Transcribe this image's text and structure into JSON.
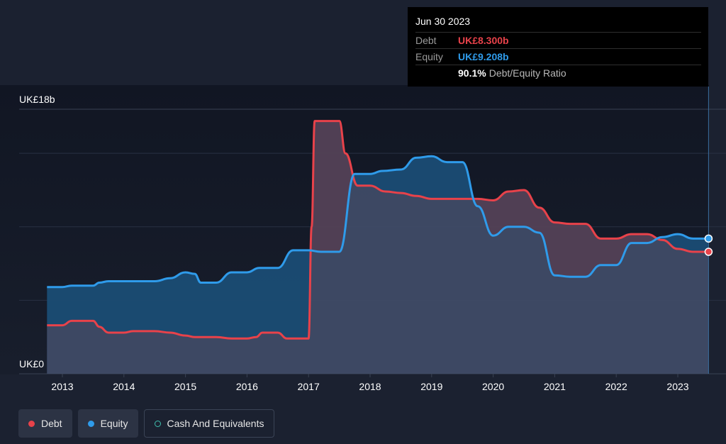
{
  "chart_data": {
    "type": "area",
    "y_unit": "UK£b",
    "ylim": [
      0,
      18
    ],
    "y_tick_labels": [
      {
        "value": 18,
        "label": "UK£18b"
      },
      {
        "value": 0,
        "label": "UK£0"
      }
    ],
    "gridlines": [
      0,
      5,
      10,
      15,
      18
    ],
    "xlim": [
      2012.7,
      2023.6
    ],
    "x_ticks": [
      2013,
      2014,
      2015,
      2016,
      2017,
      2018,
      2019,
      2020,
      2021,
      2022,
      2023
    ],
    "x_tick_labels": [
      "2013",
      "2014",
      "2015",
      "2016",
      "2017",
      "2018",
      "2019",
      "2020",
      "2021",
      "2022",
      "2023"
    ],
    "series": [
      {
        "name": "Debt",
        "color": "#e8424a",
        "x": [
          2012.75,
          2013.0,
          2013.15,
          2013.5,
          2013.6,
          2013.75,
          2014.0,
          2014.15,
          2014.5,
          2014.75,
          2015.0,
          2015.15,
          2015.5,
          2015.75,
          2016.0,
          2016.15,
          2016.25,
          2016.5,
          2016.65,
          2016.8,
          2017.0,
          2017.05,
          2017.1,
          2017.25,
          2017.5,
          2017.6,
          2017.8,
          2018.0,
          2018.25,
          2018.5,
          2018.75,
          2019.0,
          2019.5,
          2019.75,
          2020.0,
          2020.25,
          2020.5,
          2020.75,
          2021.0,
          2021.25,
          2021.5,
          2021.75,
          2022.0,
          2022.25,
          2022.5,
          2022.75,
          2023.0,
          2023.25,
          2023.5
        ],
        "values": [
          3.3,
          3.3,
          3.6,
          3.6,
          3.2,
          2.8,
          2.8,
          2.9,
          2.9,
          2.8,
          2.6,
          2.5,
          2.5,
          2.4,
          2.4,
          2.5,
          2.8,
          2.8,
          2.4,
          2.4,
          2.4,
          10.0,
          17.2,
          17.2,
          17.2,
          15.0,
          12.8,
          12.8,
          12.4,
          12.3,
          12.1,
          11.9,
          11.9,
          11.9,
          11.8,
          12.4,
          12.5,
          11.3,
          10.3,
          10.2,
          10.2,
          9.2,
          9.2,
          9.5,
          9.5,
          9.1,
          8.5,
          8.3,
          8.3
        ]
      },
      {
        "name": "Equity",
        "color": "#2f9bea",
        "x": [
          2012.75,
          2013.0,
          2013.15,
          2013.5,
          2013.6,
          2013.75,
          2014.0,
          2014.5,
          2014.75,
          2015.0,
          2015.15,
          2015.25,
          2015.5,
          2015.75,
          2016.0,
          2016.2,
          2016.5,
          2016.75,
          2017.0,
          2017.2,
          2017.5,
          2017.75,
          2018.0,
          2018.2,
          2018.5,
          2018.75,
          2019.0,
          2019.25,
          2019.5,
          2019.75,
          2020.0,
          2020.25,
          2020.5,
          2020.75,
          2021.0,
          2021.25,
          2021.5,
          2021.75,
          2022.0,
          2022.25,
          2022.5,
          2022.75,
          2023.0,
          2023.25,
          2023.5
        ],
        "values": [
          5.9,
          5.9,
          6.0,
          6.0,
          6.2,
          6.3,
          6.3,
          6.3,
          6.5,
          6.9,
          6.8,
          6.2,
          6.2,
          6.9,
          6.9,
          7.2,
          7.2,
          8.4,
          8.4,
          8.3,
          8.3,
          13.6,
          13.6,
          13.8,
          13.9,
          14.7,
          14.8,
          14.4,
          14.4,
          11.4,
          9.4,
          10.0,
          10.0,
          9.6,
          6.7,
          6.6,
          6.6,
          7.4,
          7.4,
          8.9,
          8.9,
          9.3,
          9.5,
          9.2,
          9.2
        ]
      },
      {
        "name": "Cash And Equivalents",
        "color": "#3fbfae",
        "x": [],
        "values": []
      }
    ],
    "tooltip": {
      "date": "Jun 30 2023",
      "debt_label": "Debt",
      "debt_value": "UK£8.300b",
      "equity_label": "Equity",
      "equity_value": "UK£9.208b",
      "ratio_value": "90.1%",
      "ratio_label": "Debt/Equity Ratio"
    },
    "legend": [
      {
        "name": "Debt",
        "color": "#e8424a",
        "style": "filled"
      },
      {
        "name": "Equity",
        "color": "#2f9bea",
        "style": "filled"
      },
      {
        "name": "Cash And Equivalents",
        "color": "#3fbfae",
        "style": "hollow"
      }
    ],
    "legend_placement": "bottom-left",
    "grid": true
  }
}
